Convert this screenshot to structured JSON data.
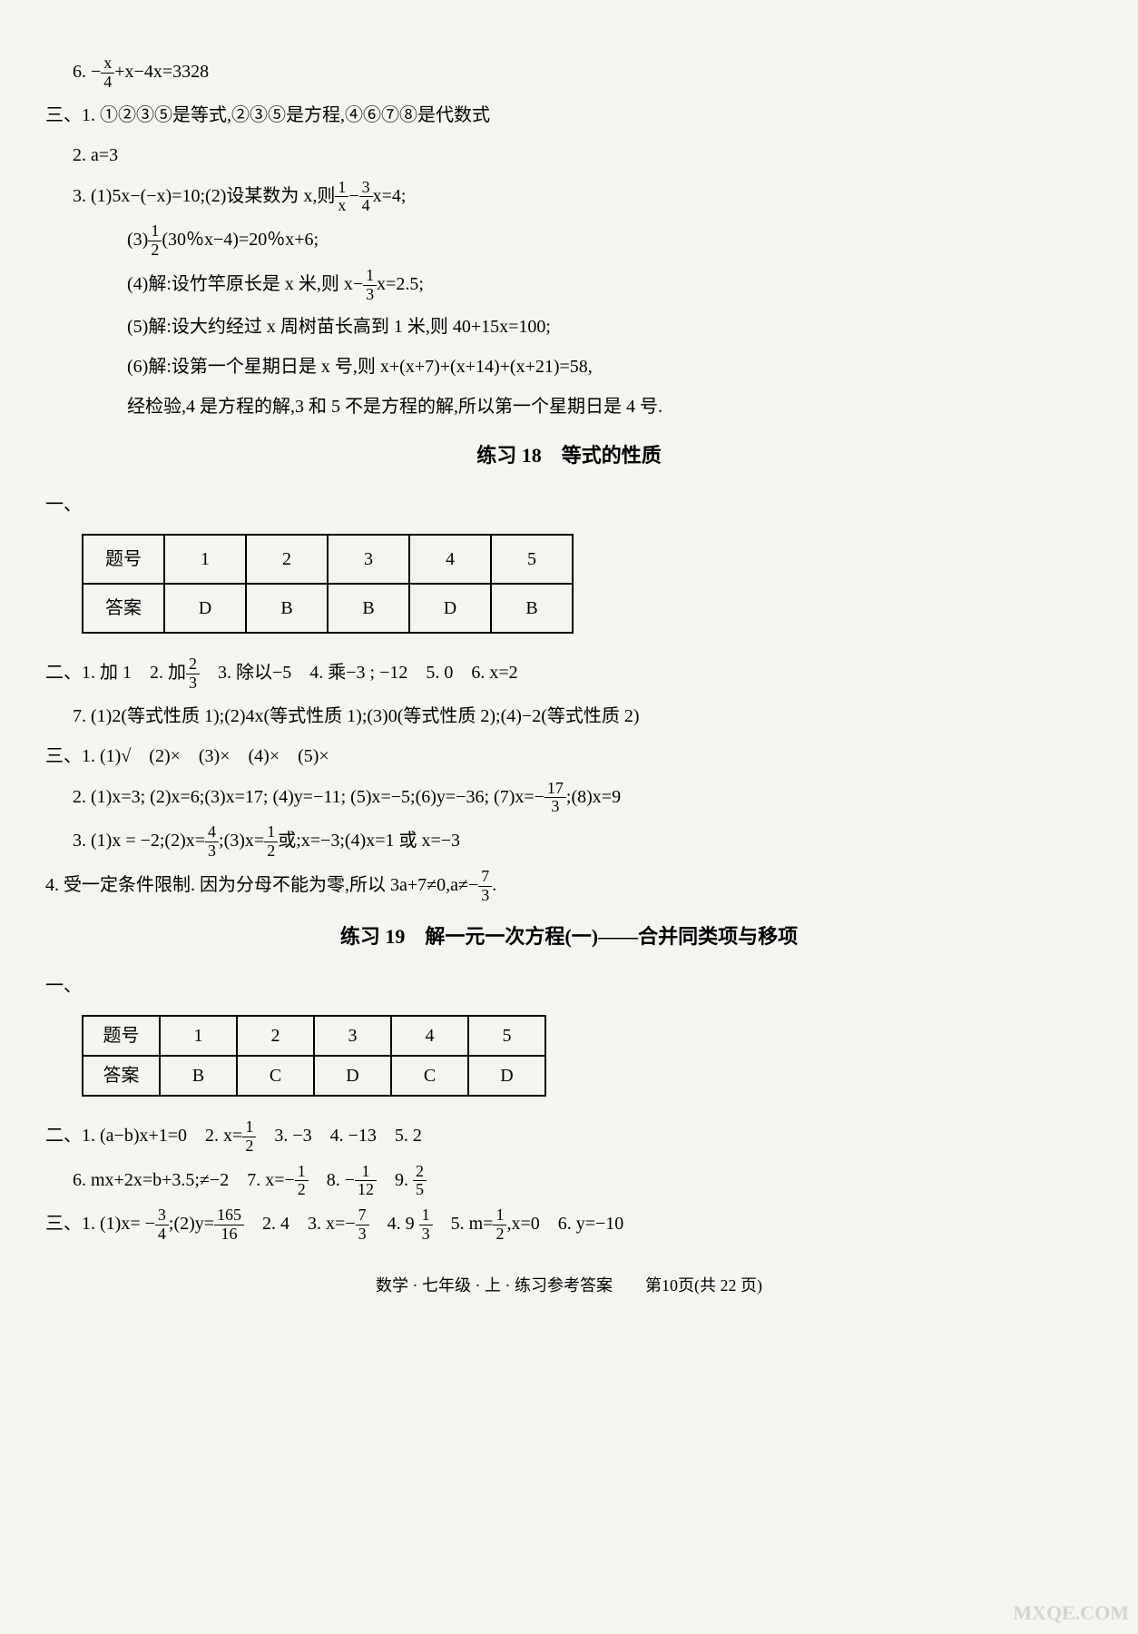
{
  "lines": {
    "l1_pre": "6. −",
    "l1_post": "+x−4x=3328",
    "l1_frac_num": "x",
    "l1_frac_den": "4",
    "l2": "三、1. ①②③⑤是等式,②③⑤是方程,④⑥⑦⑧是代数式",
    "l3": "2. a=3",
    "l4_pre": "3. (1)5x−(−x)=10;(2)设某数为 x,则",
    "l4_f1_num": "1",
    "l4_f1_den": "x",
    "l4_mid": "−",
    "l4_f2_num": "3",
    "l4_f2_den": "4",
    "l4_post": "x=4;",
    "l5_pre": "(3)",
    "l5_f_num": "1",
    "l5_f_den": "2",
    "l5_post": "(30％x−4)=20％x+6;",
    "l6_pre": "(4)解:设竹竿原长是 x 米,则 x−",
    "l6_f_num": "1",
    "l6_f_den": "3",
    "l6_post": "x=2.5;",
    "l7": "(5)解:设大约经过 x 周树苗长高到 1 米,则 40+15x=100;",
    "l8": "(6)解:设第一个星期日是 x 号,则 x+(x+7)+(x+14)+(x+21)=58,",
    "l9": "经检验,4 是方程的解,3 和 5 不是方程的解,所以第一个星期日是 4 号.",
    "title1": "练习 18　等式的性质",
    "sec_yi": "一、",
    "tb1_h1": "题号",
    "tb1_h2": "1",
    "tb1_h3": "2",
    "tb1_h4": "3",
    "tb1_h5": "4",
    "tb1_h6": "5",
    "tb1_a1": "答案",
    "tb1_a2": "D",
    "tb1_a3": "B",
    "tb1_a4": "B",
    "tb1_a5": "D",
    "tb1_a6": "B",
    "l10_pre": "二、1. 加 1　2. 加",
    "l10_f_num": "2",
    "l10_f_den": "3",
    "l10_post": "　3. 除以−5　4. 乘−3 ; −12　5. 0　6. x=2",
    "l11": "7. (1)2(等式性质 1);(2)4x(等式性质 1);(3)0(等式性质 2);(4)−2(等式性质 2)",
    "l12": "三、1. (1)√　(2)×　(3)×　(4)×　(5)×",
    "l13_pre": "2. (1)x=3; (2)x=6;(3)x=17; (4)y=−11; (5)x=−5;(6)y=−36; (7)x=−",
    "l13_f_num": "17",
    "l13_f_den": "3",
    "l13_post": ";(8)x=9",
    "l14_pre": "3. (1)x = −2;(2)x=",
    "l14_f1_num": "4",
    "l14_f1_den": "3",
    "l14_mid": ";(3)x=",
    "l14_f2_num": "1",
    "l14_f2_den": "2",
    "l14_post": "或;x=−3;(4)x=1 或 x=−3",
    "l15_pre": "4. 受一定条件限制. 因为分母不能为零,所以 3a+7≠0,a≠−",
    "l15_f_num": "7",
    "l15_f_den": "3",
    "l15_post": ".",
    "title2": "练习 19　解一元一次方程(一)——合并同类项与移项",
    "tb2_h1": "题号",
    "tb2_h2": "1",
    "tb2_h3": "2",
    "tb2_h4": "3",
    "tb2_h5": "4",
    "tb2_h6": "5",
    "tb2_a1": "答案",
    "tb2_a2": "B",
    "tb2_a3": "C",
    "tb2_a4": "D",
    "tb2_a5": "C",
    "tb2_a6": "D",
    "l16_pre": "二、1. (a−b)x+1=0　2. x=",
    "l16_f_num": "1",
    "l16_f_den": "2",
    "l16_post": "　3. −3　4. −13　5. 2",
    "l17_pre": "6. mx+2x=b+3.5;≠−2　7. x=−",
    "l17_f1_num": "1",
    "l17_f1_den": "2",
    "l17_mid1": "　8. −",
    "l17_f2_num": "1",
    "l17_f2_den": "12",
    "l17_mid2": "　9. ",
    "l17_f3_num": "2",
    "l17_f3_den": "5",
    "l18_pre": "三、1. (1)x= −",
    "l18_f1_num": "3",
    "l18_f1_den": "4",
    "l18_mid1": ";(2)y=",
    "l18_f2_num": "165",
    "l18_f2_den": "16",
    "l18_mid2": "　2. 4　3. x=−",
    "l18_f3_num": "7",
    "l18_f3_den": "3",
    "l18_mid3": "　4. 9 ",
    "l18_f4_num": "1",
    "l18_f4_den": "3",
    "l18_mid4": "　5. m=",
    "l18_f5_num": "1",
    "l18_f5_den": "2",
    "l18_post": ",x=0　6. y=−10",
    "footer": "数学 · 七年级 · 上 · 练习参考答案　　第10页(共 22 页)",
    "watermark": "MXQE.COM"
  },
  "colors": {
    "bg": "#f5f5f0",
    "text": "#000000",
    "border": "#000000"
  },
  "fonts": {
    "body_size": 20,
    "title_size": 22,
    "frac_size": 18
  }
}
